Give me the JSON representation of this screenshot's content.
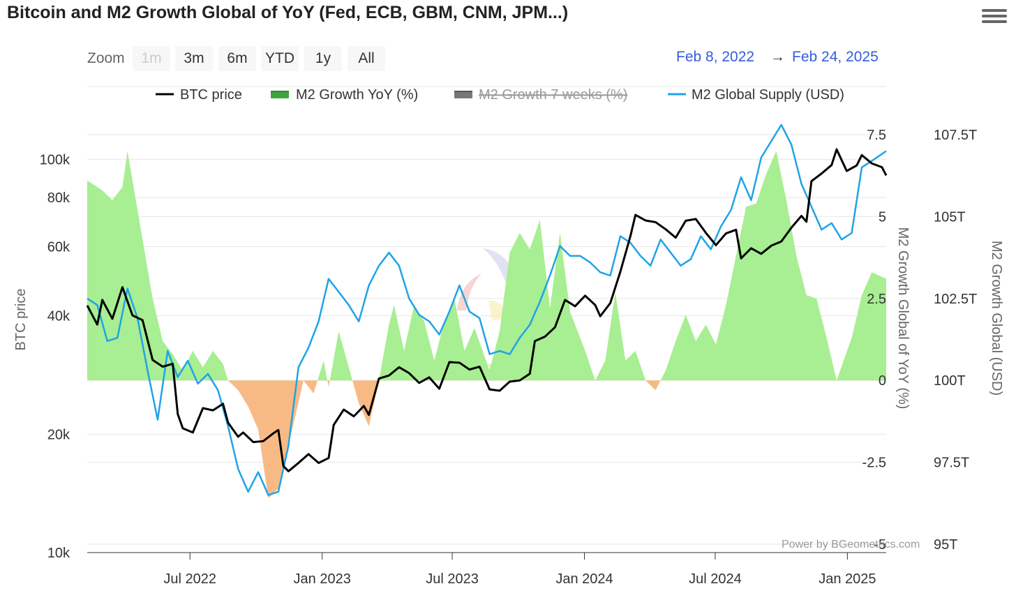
{
  "title": "Bitcoin and M2 Growth Global of YoY (Fed, ECB, GBM, CNM, JPM...)",
  "menu_icon": "hamburger-menu-icon",
  "zoom": {
    "label": "Zoom",
    "buttons": [
      {
        "label": "1m",
        "disabled": true
      },
      {
        "label": "3m",
        "disabled": false
      },
      {
        "label": "6m",
        "disabled": false
      },
      {
        "label": "YTD",
        "disabled": false
      },
      {
        "label": "1y",
        "disabled": false
      },
      {
        "label": "All",
        "disabled": false
      }
    ]
  },
  "range": {
    "from": "Feb 8, 2022",
    "arrow": "→",
    "to": "Feb 24, 2025"
  },
  "legend": [
    {
      "name": "BTC price",
      "color": "#000000",
      "style": "line",
      "hidden": false
    },
    {
      "name": "M2 Growth YoY (%)",
      "color": "#3da53d",
      "style": "area",
      "hidden": false
    },
    {
      "name": "M2 Growth 7 weeks (%)",
      "color": "#777777",
      "style": "area",
      "hidden": true
    },
    {
      "name": "M2 Global Supply (USD)",
      "color": "#1fa3e8",
      "style": "line",
      "hidden": false
    }
  ],
  "axes": {
    "left_title": "BTC price",
    "left_ticks": [
      "10k",
      "20k",
      "40k",
      "60k",
      "80k",
      "100k"
    ],
    "right1_title": "M2 Growth Global of YoY (%)",
    "right1_ticks": [
      "-5",
      "-2.5",
      "0",
      "2.5",
      "5",
      "7.5"
    ],
    "right2_title": "M2 Growth Global (USD)",
    "right2_ticks": [
      "95T",
      "97.5T",
      "100T",
      "102.5T",
      "105T",
      "107.5T"
    ],
    "x_ticks": [
      "Jul 2022",
      "Jan 2023",
      "Jul 2023",
      "Jan 2024",
      "Jul 2024",
      "Jan 2025"
    ]
  },
  "credit": "Power by BGeometrics.com",
  "watermark": "BGeometrics",
  "colors": {
    "positive_fill": "#a8ee92",
    "negative_fill": "#f8ba85",
    "btc": "#000000",
    "m2": "#1fa3e8"
  },
  "chart_data": {
    "type": "line",
    "x_range": [
      "2022-02-08",
      "2025-02-24"
    ],
    "series": [
      {
        "name": "BTC price",
        "axis": "left (log)",
        "ylim": [
          10000,
          110000
        ],
        "points": [
          [
            "2022-02-08",
            42500
          ],
          [
            "2022-02-22",
            38000
          ],
          [
            "2022-03-01",
            43900
          ],
          [
            "2022-03-15",
            39300
          ],
          [
            "2022-03-29",
            47300
          ],
          [
            "2022-04-12",
            40100
          ],
          [
            "2022-04-26",
            39000
          ],
          [
            "2022-05-10",
            30900
          ],
          [
            "2022-05-24",
            29700
          ],
          [
            "2022-06-07",
            30200
          ],
          [
            "2022-06-14",
            22500
          ],
          [
            "2022-06-21",
            20700
          ],
          [
            "2022-07-05",
            20200
          ],
          [
            "2022-07-19",
            23300
          ],
          [
            "2022-08-02",
            23000
          ],
          [
            "2022-08-16",
            23900
          ],
          [
            "2022-08-23",
            21400
          ],
          [
            "2022-09-06",
            19700
          ],
          [
            "2022-09-13",
            20200
          ],
          [
            "2022-09-27",
            19100
          ],
          [
            "2022-10-11",
            19200
          ],
          [
            "2022-10-25",
            20100
          ],
          [
            "2022-11-01",
            20500
          ],
          [
            "2022-11-08",
            16600
          ],
          [
            "2022-11-15",
            16100
          ],
          [
            "2022-11-29",
            16900
          ],
          [
            "2022-12-13",
            17800
          ],
          [
            "2022-12-27",
            16900
          ],
          [
            "2023-01-10",
            17400
          ],
          [
            "2023-01-17",
            21100
          ],
          [
            "2023-01-31",
            23100
          ],
          [
            "2023-02-14",
            22200
          ],
          [
            "2023-02-28",
            23600
          ],
          [
            "2023-03-07",
            22400
          ],
          [
            "2023-03-21",
            27700
          ],
          [
            "2023-04-04",
            28200
          ],
          [
            "2023-04-18",
            29600
          ],
          [
            "2023-05-02",
            28600
          ],
          [
            "2023-05-16",
            27000
          ],
          [
            "2023-05-30",
            27900
          ],
          [
            "2023-06-13",
            26100
          ],
          [
            "2023-06-27",
            30500
          ],
          [
            "2023-07-11",
            30400
          ],
          [
            "2023-07-25",
            29200
          ],
          [
            "2023-08-08",
            29700
          ],
          [
            "2023-08-22",
            26000
          ],
          [
            "2023-09-05",
            25800
          ],
          [
            "2023-09-19",
            27200
          ],
          [
            "2023-10-03",
            27400
          ],
          [
            "2023-10-17",
            28500
          ],
          [
            "2023-10-24",
            34500
          ],
          [
            "2023-11-07",
            35400
          ],
          [
            "2023-11-21",
            37400
          ],
          [
            "2023-12-05",
            43900
          ],
          [
            "2023-12-19",
            42300
          ],
          [
            "2024-01-02",
            45000
          ],
          [
            "2024-01-16",
            42600
          ],
          [
            "2024-01-23",
            39900
          ],
          [
            "2024-02-06",
            43100
          ],
          [
            "2024-02-20",
            51800
          ],
          [
            "2024-03-05",
            63800
          ],
          [
            "2024-03-12",
            72200
          ],
          [
            "2024-03-26",
            69900
          ],
          [
            "2024-04-09",
            69200
          ],
          [
            "2024-04-23",
            66400
          ],
          [
            "2024-05-07",
            63200
          ],
          [
            "2024-05-21",
            69800
          ],
          [
            "2024-06-04",
            70500
          ],
          [
            "2024-06-18",
            65000
          ],
          [
            "2024-07-02",
            60500
          ],
          [
            "2024-07-16",
            64800
          ],
          [
            "2024-07-30",
            66200
          ],
          [
            "2024-08-06",
            56000
          ],
          [
            "2024-08-20",
            59400
          ],
          [
            "2024-09-03",
            57500
          ],
          [
            "2024-09-17",
            60300
          ],
          [
            "2024-10-01",
            61800
          ],
          [
            "2024-10-15",
            67000
          ],
          [
            "2024-10-29",
            71800
          ],
          [
            "2024-11-05",
            69400
          ],
          [
            "2024-11-12",
            88000
          ],
          [
            "2024-11-26",
            92000
          ],
          [
            "2024-12-10",
            96700
          ],
          [
            "2024-12-17",
            106000
          ],
          [
            "2024-12-31",
            93400
          ],
          [
            "2025-01-14",
            96500
          ],
          [
            "2025-01-21",
            102500
          ],
          [
            "2025-02-04",
            97600
          ],
          [
            "2025-02-18",
            95500
          ],
          [
            "2025-02-24",
            91000
          ]
        ]
      },
      {
        "name": "M2 Growth YoY (%)",
        "axis": "right1",
        "ylim": [
          -5,
          7.5
        ],
        "points": [
          [
            "2022-02-08",
            6.1
          ],
          [
            "2022-03-01",
            5.8
          ],
          [
            "2022-03-15",
            5.5
          ],
          [
            "2022-03-29",
            5.9
          ],
          [
            "2022-04-05",
            7.0
          ],
          [
            "2022-04-19",
            5.2
          ],
          [
            "2022-05-10",
            2.5
          ],
          [
            "2022-05-24",
            1.2
          ],
          [
            "2022-06-07",
            0.8
          ],
          [
            "2022-06-21",
            0.3
          ],
          [
            "2022-07-05",
            0.9
          ],
          [
            "2022-07-19",
            0.4
          ],
          [
            "2022-08-02",
            0.9
          ],
          [
            "2022-08-16",
            0.5
          ],
          [
            "2022-08-23",
            0.0
          ],
          [
            "2022-09-06",
            -0.3
          ],
          [
            "2022-09-20",
            -0.8
          ],
          [
            "2022-10-04",
            -1.5
          ],
          [
            "2022-10-18",
            -3.6
          ],
          [
            "2022-11-01",
            -3.3
          ],
          [
            "2022-11-15",
            -2.0
          ],
          [
            "2022-12-06",
            0.0
          ],
          [
            "2022-12-20",
            -0.4
          ],
          [
            "2023-01-03",
            0.6
          ],
          [
            "2023-01-10",
            -0.2
          ],
          [
            "2023-01-24",
            1.5
          ],
          [
            "2023-02-07",
            0.4
          ],
          [
            "2023-02-21",
            -0.7
          ],
          [
            "2023-03-07",
            -1.4
          ],
          [
            "2023-03-21",
            0.0
          ],
          [
            "2023-04-04",
            1.7
          ],
          [
            "2023-04-11",
            2.3
          ],
          [
            "2023-04-25",
            0.9
          ],
          [
            "2023-05-09",
            2.3
          ],
          [
            "2023-05-23",
            1.8
          ],
          [
            "2023-06-06",
            0.6
          ],
          [
            "2023-06-20",
            1.8
          ],
          [
            "2023-07-04",
            2.5
          ],
          [
            "2023-07-18",
            0.9
          ],
          [
            "2023-08-01",
            1.6
          ],
          [
            "2023-08-22",
            0.3
          ],
          [
            "2023-09-05",
            1.5
          ],
          [
            "2023-09-19",
            3.9
          ],
          [
            "2023-10-03",
            4.5
          ],
          [
            "2023-10-17",
            4.0
          ],
          [
            "2023-10-31",
            4.9
          ],
          [
            "2023-11-14",
            2.2
          ],
          [
            "2023-11-28",
            4.5
          ],
          [
            "2023-12-12",
            2.1
          ],
          [
            "2024-01-02",
            0.9
          ],
          [
            "2024-01-16",
            0.0
          ],
          [
            "2024-01-30",
            0.6
          ],
          [
            "2024-02-13",
            2.7
          ],
          [
            "2024-02-27",
            0.6
          ],
          [
            "2024-03-12",
            0.9
          ],
          [
            "2024-03-26",
            0.0
          ],
          [
            "2024-04-09",
            -0.3
          ],
          [
            "2024-04-23",
            0.3
          ],
          [
            "2024-05-07",
            1.2
          ],
          [
            "2024-05-21",
            2.0
          ],
          [
            "2024-06-04",
            1.2
          ],
          [
            "2024-06-18",
            1.7
          ],
          [
            "2024-07-02",
            1.1
          ],
          [
            "2024-07-16",
            2.3
          ],
          [
            "2024-07-30",
            3.8
          ],
          [
            "2024-08-13",
            5.3
          ],
          [
            "2024-08-27",
            5.4
          ],
          [
            "2024-09-10",
            6.3
          ],
          [
            "2024-09-24",
            7.0
          ],
          [
            "2024-10-08",
            5.5
          ],
          [
            "2024-10-22",
            3.8
          ],
          [
            "2024-11-05",
            2.6
          ],
          [
            "2024-11-19",
            2.5
          ],
          [
            "2024-12-03",
            1.3
          ],
          [
            "2024-12-17",
            0.0
          ],
          [
            "2025-01-07",
            1.3
          ],
          [
            "2025-01-21",
            2.6
          ],
          [
            "2025-02-04",
            3.3
          ],
          [
            "2025-02-24",
            3.1
          ]
        ]
      },
      {
        "name": "M2 Global Supply (USD)",
        "axis": "right2",
        "ylim": [
          95,
          107.5
        ],
        "unit": "T",
        "points": [
          [
            "2022-02-08",
            102.5
          ],
          [
            "2022-02-22",
            102.3
          ],
          [
            "2022-03-08",
            101.2
          ],
          [
            "2022-03-22",
            101.3
          ],
          [
            "2022-04-05",
            102.8
          ],
          [
            "2022-04-19",
            101.9
          ],
          [
            "2022-05-03",
            100.3
          ],
          [
            "2022-05-17",
            98.8
          ],
          [
            "2022-05-31",
            100.9
          ],
          [
            "2022-06-14",
            100.1
          ],
          [
            "2022-06-28",
            100.6
          ],
          [
            "2022-07-12",
            99.9
          ],
          [
            "2022-07-26",
            100.2
          ],
          [
            "2022-08-09",
            99.7
          ],
          [
            "2022-08-23",
            98.6
          ],
          [
            "2022-09-06",
            97.3
          ],
          [
            "2022-09-20",
            96.6
          ],
          [
            "2022-10-04",
            97.2
          ],
          [
            "2022-10-18",
            96.5
          ],
          [
            "2022-11-01",
            96.6
          ],
          [
            "2022-11-15",
            98.0
          ],
          [
            "2022-11-29",
            100.4
          ],
          [
            "2022-12-13",
            101.0
          ],
          [
            "2022-12-27",
            101.8
          ],
          [
            "2023-01-10",
            103.1
          ],
          [
            "2023-01-24",
            102.7
          ],
          [
            "2023-02-07",
            102.3
          ],
          [
            "2023-02-21",
            101.8
          ],
          [
            "2023-03-07",
            102.9
          ],
          [
            "2023-03-21",
            103.5
          ],
          [
            "2023-04-04",
            103.9
          ],
          [
            "2023-04-18",
            103.5
          ],
          [
            "2023-05-02",
            102.5
          ],
          [
            "2023-05-16",
            102.0
          ],
          [
            "2023-05-30",
            101.8
          ],
          [
            "2023-06-13",
            101.4
          ],
          [
            "2023-06-27",
            102.1
          ],
          [
            "2023-07-11",
            102.9
          ],
          [
            "2023-07-25",
            102.1
          ],
          [
            "2023-08-08",
            101.9
          ],
          [
            "2023-08-22",
            100.8
          ],
          [
            "2023-09-05",
            100.9
          ],
          [
            "2023-09-19",
            100.8
          ],
          [
            "2023-10-03",
            101.3
          ],
          [
            "2023-10-17",
            101.7
          ],
          [
            "2023-10-31",
            102.4
          ],
          [
            "2023-11-14",
            103.2
          ],
          [
            "2023-11-28",
            104.1
          ],
          [
            "2023-12-12",
            103.8
          ],
          [
            "2023-12-26",
            103.8
          ],
          [
            "2024-01-09",
            103.6
          ],
          [
            "2024-01-23",
            103.3
          ],
          [
            "2024-02-06",
            103.2
          ],
          [
            "2024-02-20",
            104.4
          ],
          [
            "2024-03-05",
            104.2
          ],
          [
            "2024-03-19",
            103.8
          ],
          [
            "2024-04-02",
            103.5
          ],
          [
            "2024-04-16",
            104.3
          ],
          [
            "2024-04-30",
            103.9
          ],
          [
            "2024-05-14",
            103.5
          ],
          [
            "2024-05-28",
            103.7
          ],
          [
            "2024-06-11",
            104.4
          ],
          [
            "2024-06-25",
            104.0
          ],
          [
            "2024-07-09",
            104.7
          ],
          [
            "2024-07-23",
            105.2
          ],
          [
            "2024-08-06",
            106.2
          ],
          [
            "2024-08-20",
            105.5
          ],
          [
            "2024-09-03",
            106.8
          ],
          [
            "2024-09-17",
            107.3
          ],
          [
            "2024-10-01",
            107.8
          ],
          [
            "2024-10-15",
            107.2
          ],
          [
            "2024-10-29",
            106.0
          ],
          [
            "2024-11-12",
            105.3
          ],
          [
            "2024-11-26",
            104.6
          ],
          [
            "2024-12-10",
            104.8
          ],
          [
            "2024-12-24",
            104.3
          ],
          [
            "2025-01-07",
            104.5
          ],
          [
            "2025-01-21",
            106.5
          ],
          [
            "2025-02-04",
            106.7
          ],
          [
            "2025-02-24",
            107.0
          ]
        ]
      }
    ],
    "hidden_series": [
      "M2 Growth 7 weeks (%)"
    ]
  }
}
